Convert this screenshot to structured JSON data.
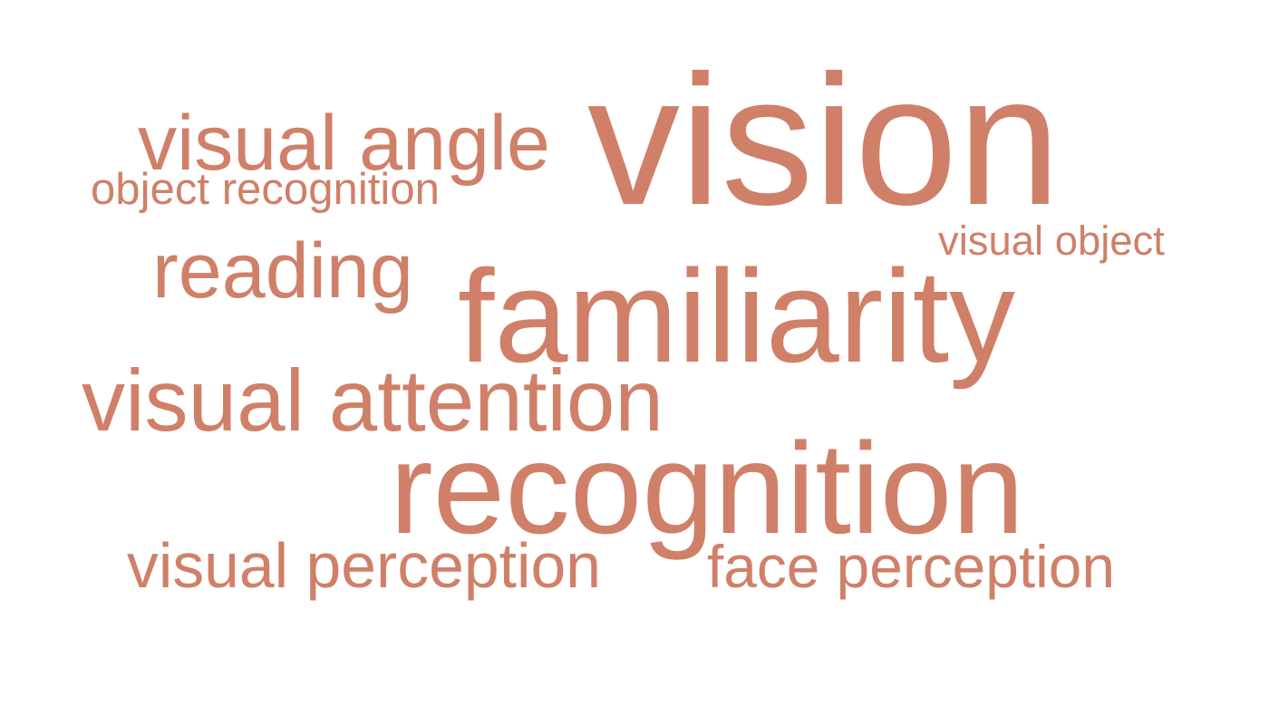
{
  "word_cloud": {
    "color": "#d08068",
    "words": [
      {
        "text": "vision"
      },
      {
        "text": "familiarity"
      },
      {
        "text": "recognition"
      },
      {
        "text": "visual attention"
      },
      {
        "text": "visual angle"
      },
      {
        "text": "reading"
      },
      {
        "text": "visual perception"
      },
      {
        "text": "face perception"
      },
      {
        "text": "object recognition"
      },
      {
        "text": "visual object"
      }
    ]
  }
}
